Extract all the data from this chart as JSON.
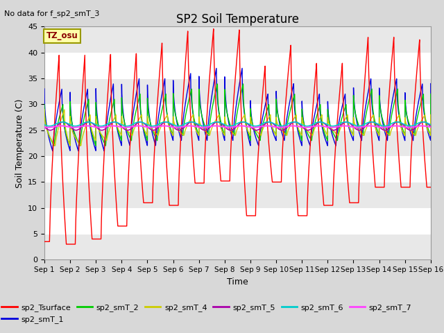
{
  "title": "SP2 Soil Temperature",
  "subtitle": "No data for f_sp2_smT_3",
  "xlabel": "Time",
  "ylabel": "Soil Temperature (C)",
  "ylim": [
    0,
    45
  ],
  "xlim": [
    0,
    15
  ],
  "tz_label": "TZ_osu",
  "fig_bg_color": "#d8d8d8",
  "plot_bg_color": "#e8e8e8",
  "xtick_labels": [
    "Sep 1",
    "Sep 2",
    "Sep 3",
    "Sep 4",
    "Sep 5",
    "Sep 6",
    "Sep 7",
    "Sep 8",
    "Sep 9",
    "Sep 10",
    "Sep 11",
    "Sep 12",
    "Sep 13",
    "Sep 14",
    "Sep 15",
    "Sep 16"
  ],
  "series": {
    "sp2_Tsurface": {
      "color": "#ff0000",
      "lw": 1.0
    },
    "sp2_smT_1": {
      "color": "#0000dd",
      "lw": 1.0
    },
    "sp2_smT_2": {
      "color": "#00cc00",
      "lw": 1.0
    },
    "sp2_smT_4": {
      "color": "#cccc00",
      "lw": 1.0
    },
    "sp2_smT_5": {
      "color": "#aa00aa",
      "lw": 1.2
    },
    "sp2_smT_6": {
      "color": "#00cccc",
      "lw": 1.2
    },
    "sp2_smT_7": {
      "color": "#ff44ff",
      "lw": 1.5
    }
  },
  "day_peaks_surf": [
    39.5,
    39.5,
    39.8,
    40.0,
    42.0,
    44.3,
    44.7,
    44.5,
    37.5,
    41.5,
    38.0,
    38.0,
    43.0,
    43.0,
    42.5
  ],
  "night_mins_surf": [
    3.5,
    3.0,
    4.0,
    6.5,
    11.0,
    10.5,
    14.8,
    15.2,
    8.5,
    15.0,
    8.5,
    10.5,
    11.0,
    14.0,
    14.0
  ],
  "day_peaks_1": [
    33,
    33,
    34,
    35,
    35,
    36,
    37,
    37,
    32,
    34,
    32,
    32,
    35,
    35,
    34
  ],
  "night_mins_1": [
    21,
    21,
    21,
    22,
    22,
    23,
    23,
    23,
    22,
    23,
    22,
    22,
    23,
    23,
    23
  ],
  "day_peaks_2": [
    30,
    31,
    31,
    32,
    32,
    33,
    34,
    34,
    30,
    32,
    30,
    30,
    33,
    33,
    32
  ],
  "night_mins_2": [
    22,
    22,
    22,
    23,
    23,
    24,
    24,
    24,
    23,
    24,
    23,
    23,
    24,
    24,
    24
  ],
  "day_peaks_4": [
    29,
    28,
    28,
    28,
    28,
    28,
    28,
    28,
    28,
    28,
    28,
    28,
    28,
    28,
    28
  ],
  "night_mins_4": [
    22,
    22,
    23,
    24,
    24,
    24,
    24,
    24,
    24,
    24,
    24,
    24,
    24,
    24,
    24
  ]
}
